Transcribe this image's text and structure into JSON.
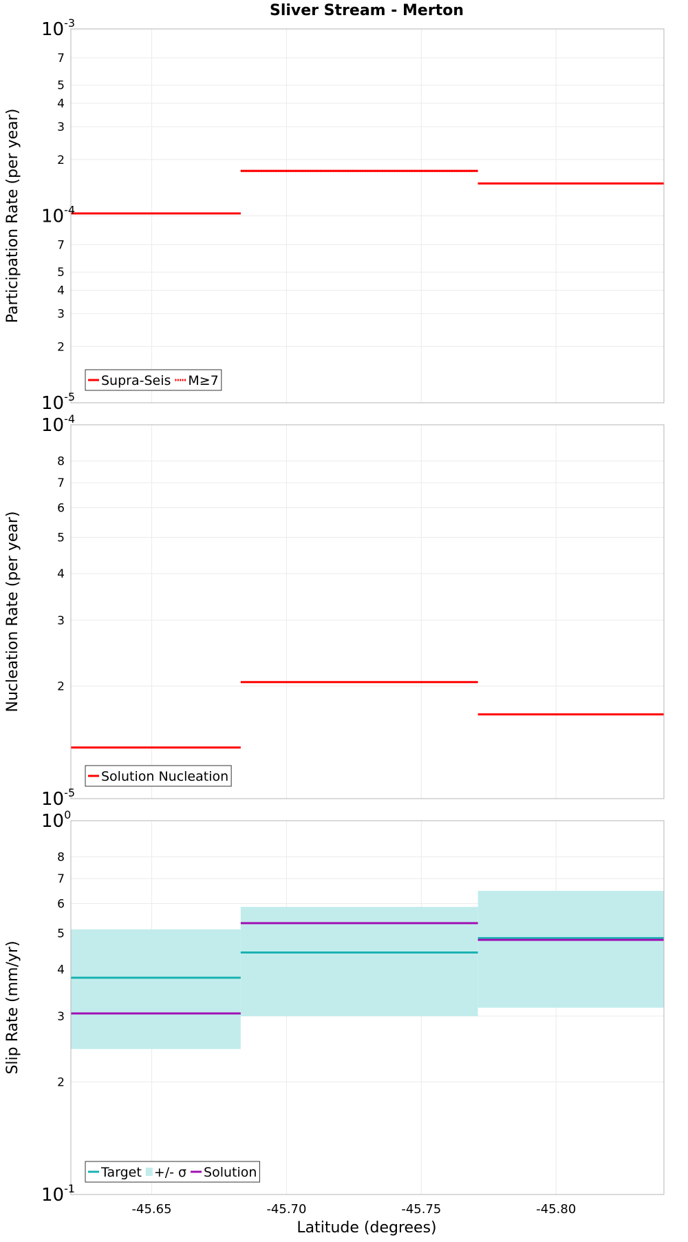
{
  "chart_data": {
    "type": "line",
    "title": "Sliver Stream - Merton",
    "xlabel": "Latitude (degrees)",
    "xlim": [
      -45.62,
      -45.84
    ],
    "xticks": [
      -45.65,
      -45.7,
      -45.75,
      -45.8
    ],
    "xtick_labels": [
      "-45.65",
      "-45.70",
      "-45.75",
      "-45.80"
    ],
    "segments": [
      {
        "x0": -45.62,
        "x1": -45.683
      },
      {
        "x0": -45.683,
        "x1": -45.771
      },
      {
        "x0": -45.771,
        "x1": -45.84
      }
    ],
    "panels": [
      {
        "id": "participation",
        "ylabel": "Participation Rate (per year)",
        "yscale": "log",
        "ylim": [
          1e-05,
          0.001
        ],
        "major_ticks": [
          {
            "value": 0.001,
            "base": "10",
            "exp": "-3"
          },
          {
            "value": 0.0001,
            "base": "10",
            "exp": "-4"
          },
          {
            "value": 1e-05,
            "base": "10",
            "exp": "-5"
          }
        ],
        "minor_ticks": [
          {
            "value": 0.0007,
            "label": "7"
          },
          {
            "value": 0.0005,
            "label": "5"
          },
          {
            "value": 0.0004,
            "label": "4"
          },
          {
            "value": 0.0003,
            "label": "3"
          },
          {
            "value": 0.0002,
            "label": "2"
          },
          {
            "value": 7e-05,
            "label": "7"
          },
          {
            "value": 5e-05,
            "label": "5"
          },
          {
            "value": 4e-05,
            "label": "4"
          },
          {
            "value": 3e-05,
            "label": "3"
          },
          {
            "value": 2e-05,
            "label": "2"
          }
        ],
        "series": [
          {
            "name": "Supra-Seis",
            "color": "#ff0000",
            "style": "solid",
            "values": [
              0.000103,
              0.000174,
              0.000149
            ]
          },
          {
            "name": "M≥7",
            "color": "#ff0000",
            "style": "dotted",
            "values": [
              0.000103,
              0.000174,
              0.000149
            ]
          }
        ],
        "legend": [
          {
            "label": "Supra-Seis",
            "color": "#ff0000",
            "style": "solid"
          },
          {
            "label": "M≥7",
            "color": "#ff0000",
            "style": "dotted"
          }
        ]
      },
      {
        "id": "nucleation",
        "ylabel": "Nucleation Rate (per year)",
        "yscale": "log",
        "ylim": [
          1e-05,
          0.0001
        ],
        "major_ticks": [
          {
            "value": 0.0001,
            "base": "10",
            "exp": "-4"
          },
          {
            "value": 1e-05,
            "base": "10",
            "exp": "-5"
          }
        ],
        "minor_ticks": [
          {
            "value": 8e-05,
            "label": "8"
          },
          {
            "value": 7e-05,
            "label": "7"
          },
          {
            "value": 6e-05,
            "label": "6"
          },
          {
            "value": 5e-05,
            "label": "5"
          },
          {
            "value": 4e-05,
            "label": "4"
          },
          {
            "value": 3e-05,
            "label": "3"
          },
          {
            "value": 2e-05,
            "label": "2"
          }
        ],
        "series": [
          {
            "name": "Solution Nucleation",
            "color": "#ff0000",
            "style": "solid",
            "values": [
              1.37e-05,
              2.05e-05,
              1.68e-05
            ]
          }
        ],
        "legend": [
          {
            "label": "Solution Nucleation",
            "color": "#ff0000",
            "style": "solid"
          }
        ]
      },
      {
        "id": "slip",
        "ylabel": "Slip Rate (mm/yr)",
        "yscale": "log",
        "ylim": [
          0.1,
          1
        ],
        "major_ticks": [
          {
            "value": 1,
            "base": "10",
            "exp": "0"
          },
          {
            "value": 0.1,
            "base": "10",
            "exp": "-1"
          }
        ],
        "minor_ticks": [
          {
            "value": 0.8,
            "label": "8"
          },
          {
            "value": 0.7,
            "label": "7"
          },
          {
            "value": 0.6,
            "label": "6"
          },
          {
            "value": 0.5,
            "label": "5"
          },
          {
            "value": 0.4,
            "label": "4"
          },
          {
            "value": 0.3,
            "label": "3"
          },
          {
            "value": 0.2,
            "label": "2"
          }
        ],
        "bands": [
          {
            "name": "+/- σ",
            "color": "#c2ecec",
            "lower": [
              0.245,
              0.3,
              0.316
            ],
            "upper": [
              0.512,
              0.588,
              0.649
            ]
          }
        ],
        "series": [
          {
            "name": "Target",
            "color": "#1ab2b2",
            "style": "solid",
            "values": [
              0.38,
              0.444,
              0.485
            ]
          },
          {
            "name": "Solution",
            "color": "#a010b4",
            "style": "solid",
            "values": [
              0.305,
              0.532,
              0.48
            ]
          }
        ],
        "legend": [
          {
            "label": "Target",
            "color": "#1ab2b2",
            "style": "solid"
          },
          {
            "label": "+/- σ",
            "color": "#c2ecec",
            "style": "band"
          },
          {
            "label": "Solution",
            "color": "#a010b4",
            "style": "solid"
          }
        ]
      }
    ]
  }
}
